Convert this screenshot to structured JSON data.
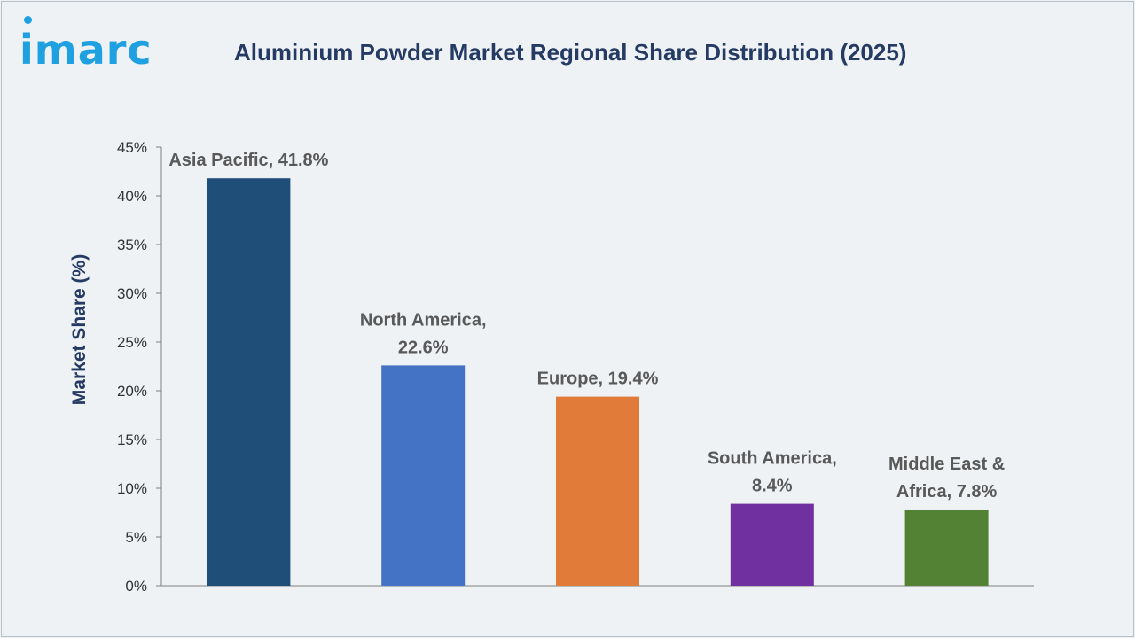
{
  "header": {
    "logo_text": "imarc",
    "title": "Aluminium Powder Market Regional Share Distribution (2025)"
  },
  "colors": {
    "title": "#253b64",
    "logo": "#1fa0e0",
    "axis": "#7f7f7f"
  },
  "chart_data": {
    "type": "bar",
    "title": "Aluminium Powder Market Regional Share Distribution (2025)",
    "xlabel": "",
    "ylabel": "Market Share (%)",
    "ylim": [
      0,
      45
    ],
    "yticks": [
      "0%",
      "5%",
      "10%",
      "15%",
      "20%",
      "25%",
      "30%",
      "35%",
      "40%",
      "45%"
    ],
    "grid": false,
    "categories": [
      "Asia Pacific",
      "North America",
      "Europe",
      "South America",
      "Middle East & Africa"
    ],
    "values": [
      41.8,
      22.6,
      19.4,
      8.4,
      7.8
    ],
    "bar_colors": [
      "#1f4e79",
      "#4472c4",
      "#e07b39",
      "#7030a0",
      "#548235"
    ],
    "data_labels": [
      [
        "Asia Pacific, 41.8%"
      ],
      [
        "North America,",
        "22.6%"
      ],
      [
        "Europe, 19.4%"
      ],
      [
        "South America,",
        "8.4%"
      ],
      [
        "Middle East &",
        "Africa, 7.8%"
      ]
    ]
  }
}
